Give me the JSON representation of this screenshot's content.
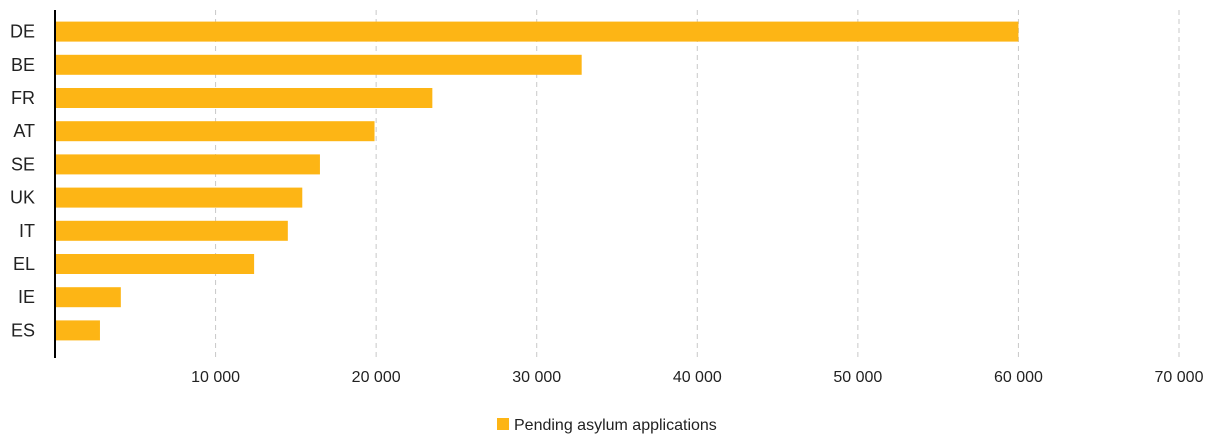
{
  "chart_data": {
    "type": "bar",
    "orientation": "horizontal",
    "categories": [
      "DE",
      "BE",
      "FR",
      "AT",
      "SE",
      "UK",
      "IT",
      "EL",
      "IE",
      "ES"
    ],
    "series": [
      {
        "name": "Pending asylum applications",
        "values": [
          60000,
          32800,
          23500,
          19900,
          16500,
          15400,
          14500,
          12400,
          4100,
          2800
        ],
        "color": "#FDB515"
      }
    ],
    "xlim": [
      0,
      70000
    ],
    "xticks": [
      10000,
      20000,
      30000,
      40000,
      50000,
      60000,
      70000
    ],
    "xtick_labels": [
      "10 000",
      "20 000",
      "30 000",
      "40 000",
      "50 000",
      "60 000",
      "70 000"
    ],
    "grid": "vertical dashed",
    "grid_color": "#c8c8c8",
    "legend_position": "bottom-center",
    "title": "",
    "xlabel": "",
    "ylabel": ""
  }
}
